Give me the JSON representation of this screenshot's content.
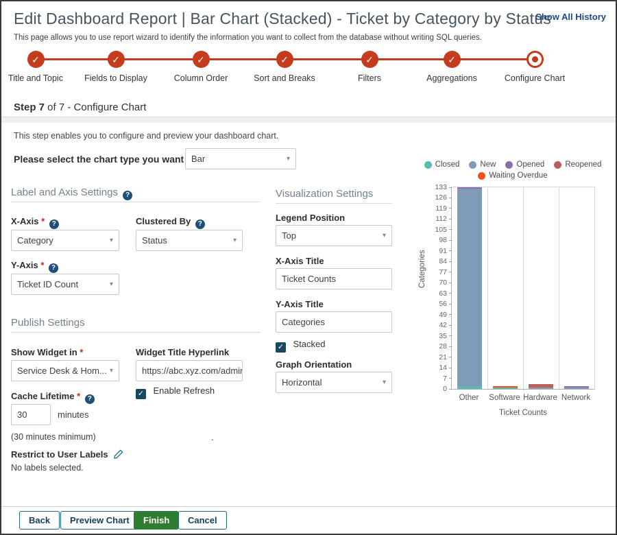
{
  "icons": {
    "check": "✓",
    "caret": "▾",
    "help": "?"
  },
  "header": {
    "title": "Edit Dashboard Report | Bar Chart (Stacked) - Ticket by Category by Status",
    "history_link": "Show All History",
    "subtitle": "This page allows you to use report wizard to identify the information you want to collect from the database without writing SQL queries."
  },
  "stepper": {
    "steps": [
      {
        "label": "Title and Topic",
        "state": "done"
      },
      {
        "label": "Fields to Display",
        "state": "done"
      },
      {
        "label": "Column Order",
        "state": "done"
      },
      {
        "label": "Sort and Breaks",
        "state": "done"
      },
      {
        "label": "Filters",
        "state": "done"
      },
      {
        "label": "Aggregations",
        "state": "done"
      },
      {
        "label": "Configure Chart",
        "state": "current"
      }
    ]
  },
  "step_heading": {
    "bold": "Step 7",
    "rest": " of 7 - Configure Chart"
  },
  "intro": "This step enables you to configure and preview your dashboard chart.",
  "chart_type": {
    "label": "Please select the chart type you want to use",
    "value": "Bar"
  },
  "label_axis": {
    "heading": "Label and Axis Settings",
    "x_axis": {
      "label": "X-Axis",
      "required": "*",
      "value": "Category"
    },
    "clustered_by": {
      "label": "Clustered By",
      "value": "Status"
    },
    "y_axis": {
      "label": "Y-Axis",
      "required": "*",
      "value": "Ticket ID Count"
    }
  },
  "publish": {
    "heading": "Publish Settings",
    "show_widget": {
      "label": "Show Widget in",
      "required": "*",
      "value": "Service Desk & Hom..."
    },
    "hyperlink": {
      "label": "Widget Title Hyperlink",
      "value": "https://abc.xyz.com/admin"
    },
    "enable_refresh": {
      "label": "Enable Refresh",
      "checked": true
    },
    "cache": {
      "label": "Cache Lifetime",
      "required": "*",
      "value": "30",
      "unit": "minutes",
      "hint": "(30 minutes minimum)"
    },
    "restrict": {
      "label": "Restrict to User Labels",
      "status": "No labels selected."
    },
    "stray_dot": "."
  },
  "visualization": {
    "heading": "Visualization Settings",
    "legend_position": {
      "label": "Legend Position",
      "value": "Top"
    },
    "x_axis_title": {
      "label": "X-Axis Title",
      "value": "Ticket Counts"
    },
    "y_axis_title": {
      "label": "Y-Axis Title",
      "value": "Categories"
    },
    "stacked": {
      "label": "Stacked",
      "checked": true
    },
    "orientation": {
      "label": "Graph Orientation",
      "value": "Horizontal"
    }
  },
  "chart_data": {
    "type": "bar",
    "stacked": true,
    "title": "",
    "categories": [
      "Other",
      "Software",
      "Hardware",
      "Network"
    ],
    "series": [
      {
        "name": "Closed",
        "color": "#5cbab4",
        "values": [
          2,
          1,
          0,
          0
        ]
      },
      {
        "name": "New",
        "color": "#7e9bb8",
        "values": [
          130,
          0,
          1,
          1
        ]
      },
      {
        "name": "Opened",
        "color": "#8e6fa8",
        "values": [
          1,
          0,
          0,
          1
        ]
      },
      {
        "name": "Reopened",
        "color": "#bf5f5a",
        "values": [
          0,
          0,
          2,
          0
        ]
      },
      {
        "name": "Waiting Overdue",
        "color": "#f4501e",
        "values": [
          0,
          1,
          0,
          0
        ]
      }
    ],
    "xlabel": "Ticket Counts",
    "ylabel": "Categories",
    "ylim": [
      0,
      133
    ],
    "yticks": [
      0,
      7,
      14,
      21,
      28,
      35,
      42,
      49,
      56,
      63,
      70,
      77,
      84,
      91,
      98,
      105,
      112,
      119,
      126,
      133
    ],
    "legend_position": "top",
    "grid": "vertical"
  },
  "footer": {
    "buttons": [
      {
        "label": "Back"
      },
      {
        "label": "Preview Chart"
      },
      {
        "label": "Finish",
        "primary": true
      },
      {
        "label": "Cancel"
      }
    ]
  }
}
